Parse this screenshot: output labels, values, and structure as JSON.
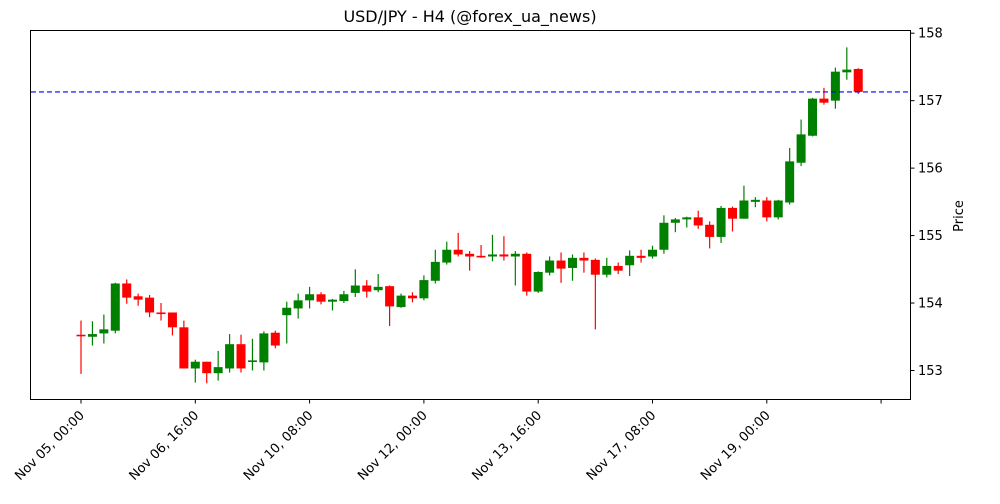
{
  "chart_data": {
    "type": "candlestick",
    "title": "USD/JPY - H4 (@forex_ua_news)",
    "xlabel": "",
    "ylabel": "Price",
    "y_axis_position": "right",
    "ylim": [
      152.57,
      158.04
    ],
    "yticks": [
      153,
      154,
      155,
      156,
      157,
      158
    ],
    "xtick_labels": [
      "Nov 05, 00:00",
      "Nov 06, 16:00",
      "Nov 10, 08:00",
      "Nov 12, 00:00",
      "Nov 13, 16:00",
      "Nov 17, 08:00",
      "Nov 19, 00:00",
      ""
    ],
    "xtick_candle_index": [
      0,
      10,
      20,
      30,
      40,
      50,
      60,
      70
    ],
    "grid": false,
    "legend": null,
    "up_color": "#008000",
    "down_color": "#ff0000",
    "hline": {
      "value": 157.13,
      "color": "#0000ff",
      "style": "dashed"
    },
    "columns": [
      "open",
      "high",
      "low",
      "close"
    ],
    "candles": [
      [
        153.53,
        153.74,
        152.95,
        153.51
      ],
      [
        153.5,
        153.73,
        153.37,
        153.54
      ],
      [
        153.55,
        153.83,
        153.4,
        153.61
      ],
      [
        153.59,
        154.3,
        153.55,
        154.29
      ],
      [
        154.29,
        154.35,
        153.99,
        154.08
      ],
      [
        154.1,
        154.14,
        153.96,
        154.05
      ],
      [
        154.08,
        154.12,
        153.79,
        153.86
      ],
      [
        153.86,
        154.0,
        153.74,
        153.84
      ],
      [
        153.86,
        153.86,
        153.52,
        153.64
      ],
      [
        153.64,
        153.74,
        153.03,
        153.03
      ],
      [
        153.03,
        153.16,
        152.82,
        153.13
      ],
      [
        153.13,
        153.13,
        152.81,
        152.96
      ],
      [
        152.96,
        153.29,
        152.85,
        153.05
      ],
      [
        153.03,
        153.54,
        152.97,
        153.39
      ],
      [
        153.39,
        153.53,
        152.97,
        153.03
      ],
      [
        153.13,
        153.47,
        153.0,
        153.15
      ],
      [
        153.12,
        153.58,
        153.0,
        153.55
      ],
      [
        153.56,
        153.59,
        153.33,
        153.37
      ],
      [
        153.82,
        154.02,
        153.4,
        153.93
      ],
      [
        153.92,
        154.14,
        153.77,
        154.04
      ],
      [
        154.04,
        154.24,
        153.92,
        154.13
      ],
      [
        154.13,
        154.16,
        153.98,
        154.02
      ],
      [
        154.02,
        154.06,
        153.89,
        154.05
      ],
      [
        154.03,
        154.18,
        154.0,
        154.13
      ],
      [
        154.15,
        154.5,
        154.09,
        154.26
      ],
      [
        154.26,
        154.34,
        154.08,
        154.17
      ],
      [
        154.19,
        154.43,
        154.16,
        154.24
      ],
      [
        154.25,
        154.26,
        153.66,
        153.95
      ],
      [
        153.94,
        154.14,
        153.93,
        154.11
      ],
      [
        154.11,
        154.16,
        154.01,
        154.07
      ],
      [
        154.07,
        154.41,
        154.04,
        154.34
      ],
      [
        154.33,
        154.79,
        154.29,
        154.61
      ],
      [
        154.6,
        154.91,
        154.57,
        154.79
      ],
      [
        154.79,
        155.04,
        154.69,
        154.72
      ],
      [
        154.73,
        154.77,
        154.48,
        154.69
      ],
      [
        154.7,
        154.86,
        154.67,
        154.69
      ],
      [
        154.69,
        155.01,
        154.62,
        154.72
      ],
      [
        154.72,
        154.99,
        154.63,
        154.69
      ],
      [
        154.69,
        154.77,
        154.26,
        154.73
      ],
      [
        154.73,
        154.75,
        154.11,
        154.17
      ],
      [
        154.17,
        154.47,
        154.15,
        154.46
      ],
      [
        154.45,
        154.69,
        154.41,
        154.63
      ],
      [
        154.63,
        154.75,
        154.3,
        154.51
      ],
      [
        154.52,
        154.72,
        154.33,
        154.67
      ],
      [
        154.67,
        154.75,
        154.45,
        154.63
      ],
      [
        154.64,
        154.66,
        153.61,
        154.42
      ],
      [
        154.42,
        154.67,
        154.38,
        154.55
      ],
      [
        154.55,
        154.6,
        154.43,
        154.48
      ],
      [
        154.56,
        154.78,
        154.4,
        154.7
      ],
      [
        154.7,
        154.79,
        154.6,
        154.67
      ],
      [
        154.69,
        154.85,
        154.66,
        154.79
      ],
      [
        154.79,
        155.3,
        154.73,
        155.19
      ],
      [
        155.19,
        155.26,
        155.05,
        155.24
      ],
      [
        155.24,
        155.28,
        155.12,
        155.27
      ],
      [
        155.27,
        155.37,
        155.1,
        155.15
      ],
      [
        155.16,
        155.21,
        154.81,
        154.98
      ],
      [
        154.98,
        155.44,
        154.89,
        155.41
      ],
      [
        155.41,
        155.43,
        155.06,
        155.25
      ],
      [
        155.25,
        155.74,
        155.25,
        155.52
      ],
      [
        155.5,
        155.57,
        155.42,
        155.53
      ],
      [
        155.52,
        155.57,
        155.21,
        155.27
      ],
      [
        155.27,
        155.53,
        155.24,
        155.52
      ],
      [
        155.49,
        156.3,
        155.46,
        156.1
      ],
      [
        156.08,
        156.72,
        156.03,
        156.5
      ],
      [
        156.48,
        157.04,
        156.47,
        157.03
      ],
      [
        157.03,
        157.19,
        156.94,
        156.97
      ],
      [
        157.0,
        157.49,
        156.88,
        157.43
      ],
      [
        157.42,
        157.79,
        157.31,
        157.46
      ],
      [
        157.47,
        157.48,
        157.1,
        157.13
      ]
    ]
  }
}
